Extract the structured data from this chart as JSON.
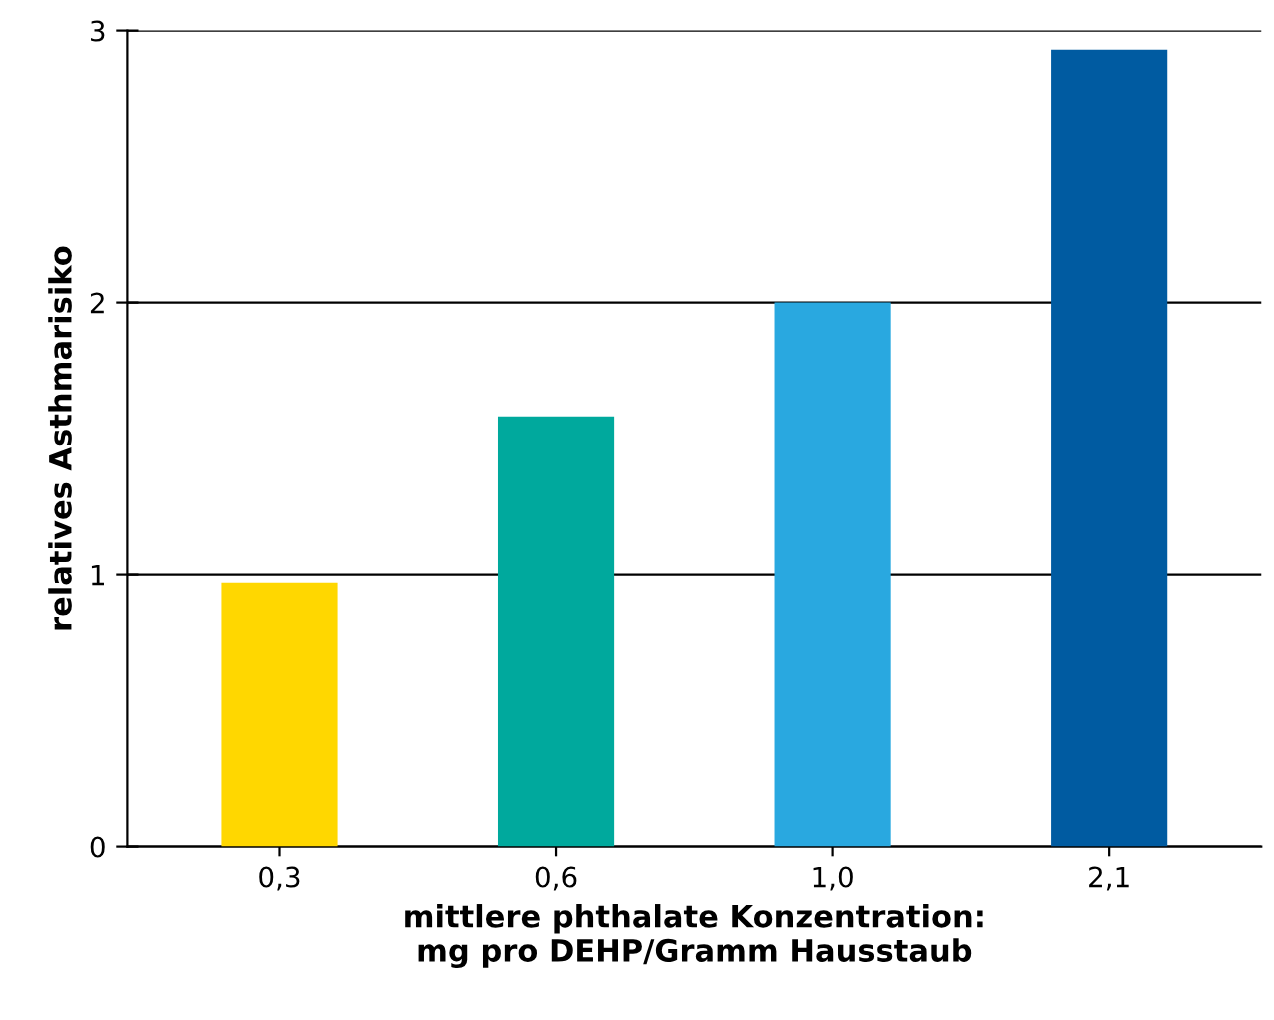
{
  "chart_data": {
    "type": "bar",
    "ylabel": "relatives Asthmarisiko",
    "xlabel": "mittlere phthalate Konzentration:\nmg pro DEHP/Gramm Hausstaub",
    "categories": [
      "0,3",
      "0,6",
      "1,0",
      "2,1"
    ],
    "values": [
      0.97,
      1.58,
      2.0,
      2.93
    ],
    "colors": [
      "#ffd700",
      "#00a99d",
      "#29a8e0",
      "#005ba1"
    ],
    "ylim": [
      0,
      3
    ],
    "yticks": [
      0,
      1,
      2,
      3
    ],
    "grid": "y"
  }
}
